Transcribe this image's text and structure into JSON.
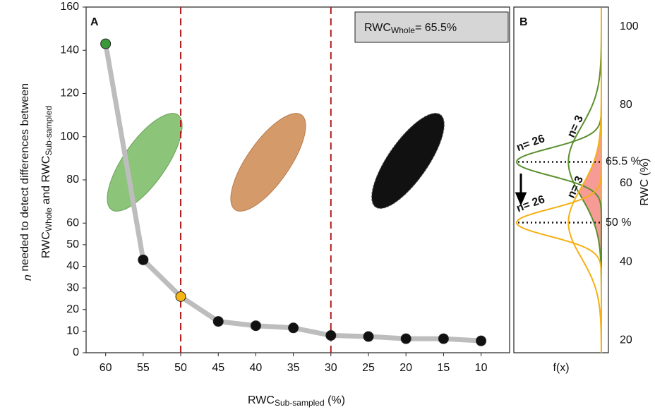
{
  "chart_data": [
    {
      "type": "line",
      "panel_label": "A",
      "ylabel_lines": [
        [
          "n",
          " needed to detect differences between"
        ],
        [
          "RWC",
          "Whole",
          " and RWC",
          "Sub-sampled"
        ]
      ],
      "xlabel": [
        "RWC",
        "Sub-sampled",
        " (%)"
      ],
      "annotation": [
        "RWC",
        "Whole",
        "= 65.5%"
      ],
      "x": [
        60,
        55,
        50,
        45,
        40,
        35,
        30,
        25,
        20,
        15,
        10
      ],
      "values": [
        143,
        43,
        26,
        14.5,
        12.5,
        11.5,
        8,
        7.5,
        6.5,
        6.5,
        5.5
      ],
      "point_colors": [
        "#3a9a3a",
        "#111111",
        "#f5b614",
        "#111111",
        "#111111",
        "#111111",
        "#111111",
        "#111111",
        "#111111",
        "#111111",
        "#111111"
      ],
      "line_color": "#bdbdbd",
      "xlim": [
        62.6,
        6.2
      ],
      "xticks": [
        60,
        55,
        50,
        45,
        40,
        35,
        30,
        25,
        20,
        15,
        10
      ],
      "ylim": [
        0,
        160
      ],
      "yticks": [
        0,
        10,
        20,
        30,
        40,
        50,
        60,
        80,
        100,
        120,
        140,
        160
      ],
      "vlines": [
        50,
        30
      ],
      "vline_color": "#b01c1c"
    },
    {
      "type": "density",
      "panel_label": "B",
      "xlabel": "f(x)",
      "ylabel": "RWC (%)",
      "ylim": [
        16.8,
        105
      ],
      "yticks": [
        20,
        40,
        60,
        80,
        100
      ],
      "series": [
        {
          "name": "n= 26",
          "color": "#5a8f2e",
          "mean": 65.5,
          "sd": 3.5
        },
        {
          "name": "n= 3",
          "color": "#5a8f2e",
          "mean": 65.5,
          "sd": 9
        },
        {
          "name": "n= 26",
          "color": "#f5b014",
          "mean": 50,
          "sd": 3.5
        },
        {
          "name": "n= 3",
          "color": "#f5b014",
          "mean": 50,
          "sd": 9
        }
      ],
      "references": [
        {
          "value": 65.5,
          "label": "65.5 %"
        },
        {
          "value": 50,
          "label": "50 %"
        }
      ],
      "overlap_color": "#f0584f"
    }
  ]
}
